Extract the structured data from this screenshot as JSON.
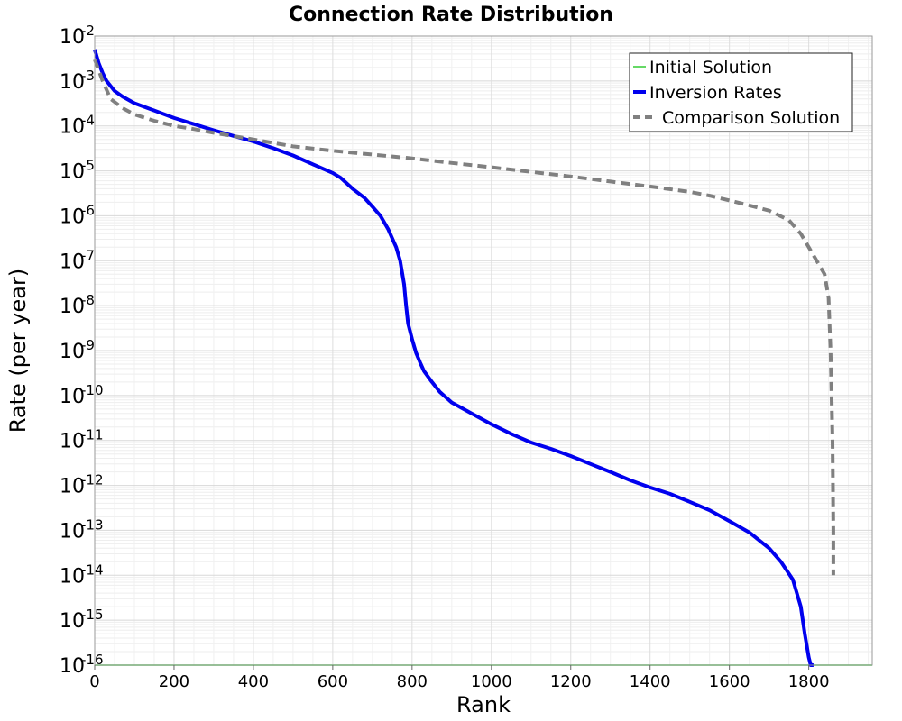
{
  "chart_data": {
    "type": "line",
    "title": "Connection Rate Distribution",
    "xlabel": "Rank",
    "ylabel": "Rate (per year)",
    "xlim": [
      0,
      1960
    ],
    "ylim_log10": [
      -16,
      -2
    ],
    "y_scale": "log",
    "grid": true,
    "legend_position": "top-right",
    "x_ticks": [
      0,
      200,
      400,
      600,
      800,
      1000,
      1200,
      1400,
      1600,
      1800
    ],
    "y_ticks": [
      {
        "base": "10",
        "exp": "-2"
      },
      {
        "base": "10",
        "exp": "-3"
      },
      {
        "base": "10",
        "exp": "-4"
      },
      {
        "base": "10",
        "exp": "-5"
      },
      {
        "base": "10",
        "exp": "-6"
      },
      {
        "base": "10",
        "exp": "-7"
      },
      {
        "base": "10",
        "exp": "-8"
      },
      {
        "base": "10",
        "exp": "-9"
      },
      {
        "base": "10",
        "exp": "-10"
      },
      {
        "base": "10",
        "exp": "-11"
      },
      {
        "base": "10",
        "exp": "-12"
      },
      {
        "base": "10",
        "exp": "-13"
      },
      {
        "base": "10",
        "exp": "-14"
      },
      {
        "base": "10",
        "exp": "-15"
      },
      {
        "base": "10",
        "exp": "-16"
      }
    ],
    "series": [
      {
        "name": "Initial Solution",
        "color": "#33cc33",
        "style": "solid-thin",
        "x": [
          0,
          1960
        ],
        "y": [
          1e-16,
          1e-16
        ]
      },
      {
        "name": "Inversion Rates",
        "color": "#0000ee",
        "style": "solid-thick",
        "x": [
          0,
          10,
          20,
          30,
          50,
          70,
          100,
          150,
          200,
          250,
          300,
          350,
          400,
          450,
          500,
          550,
          600,
          620,
          650,
          680,
          700,
          720,
          740,
          760,
          770,
          780,
          785,
          790,
          800,
          810,
          820,
          830,
          850,
          870,
          900,
          950,
          1000,
          1050,
          1100,
          1150,
          1200,
          1250,
          1300,
          1350,
          1400,
          1450,
          1500,
          1550,
          1600,
          1650,
          1700,
          1730,
          1760,
          1780,
          1790,
          1800,
          1805,
          1810,
          1812
        ],
        "y": [
          0.005,
          0.0025,
          0.0015,
          0.001,
          0.0006,
          0.00045,
          0.00032,
          0.00022,
          0.00015,
          0.00011,
          8e-05,
          6e-05,
          4.5e-05,
          3.2e-05,
          2.2e-05,
          1.4e-05,
          9e-06,
          7e-06,
          4e-06,
          2.5e-06,
          1.6e-06,
          1e-06,
          5e-07,
          2e-07,
          1e-07,
          3e-08,
          1e-08,
          4e-09,
          1.8e-09,
          9e-10,
          5.5e-10,
          3.5e-10,
          2e-10,
          1.2e-10,
          7e-11,
          4e-11,
          2.3e-11,
          1.4e-11,
          9e-12,
          6.5e-12,
          4.5e-12,
          3e-12,
          2e-12,
          1.3e-12,
          9e-13,
          6.5e-13,
          4.3e-13,
          2.8e-13,
          1.6e-13,
          9e-14,
          4e-14,
          2e-14,
          8e-15,
          2e-15,
          5e-16,
          1.5e-16,
          1e-16,
          1e-16,
          1e-16
        ]
      },
      {
        "name": "Comparison Solution",
        "color": "#808080",
        "style": "dashed-thick",
        "x": [
          0,
          20,
          40,
          70,
          100,
          150,
          200,
          250,
          300,
          400,
          500,
          600,
          700,
          800,
          900,
          1000,
          1100,
          1200,
          1300,
          1400,
          1500,
          1550,
          1600,
          1650,
          1700,
          1750,
          1780,
          1800,
          1820,
          1840,
          1850,
          1855,
          1860,
          1862,
          1862
        ],
        "y": [
          0.003,
          0.001,
          0.0004,
          0.00025,
          0.00018,
          0.00013,
          0.0001,
          8.5e-05,
          7e-05,
          5e-05,
          3.5e-05,
          2.8e-05,
          2.3e-05,
          1.9e-05,
          1.5e-05,
          1.2e-05,
          9.5e-06,
          7.5e-06,
          5.8e-06,
          4.5e-06,
          3.4e-06,
          2.8e-06,
          2.2e-06,
          1.7e-06,
          1.3e-06,
          8e-07,
          4e-07,
          2e-07,
          1e-07,
          5e-08,
          1.5e-08,
          1e-09,
          1e-11,
          1e-13,
          1e-14
        ]
      }
    ]
  }
}
